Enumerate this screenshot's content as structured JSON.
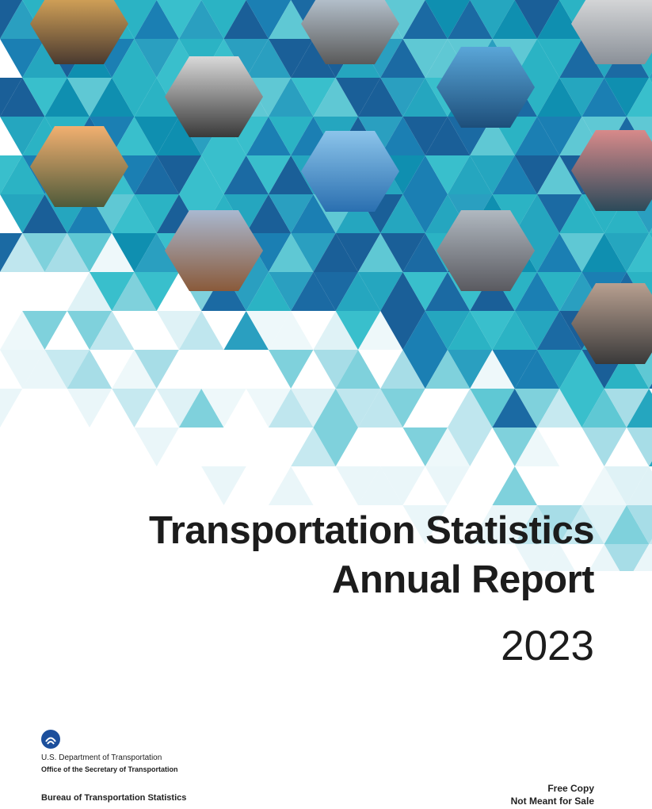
{
  "cover": {
    "title_line1": "Transportation Statistics",
    "title_line2": "Annual Report",
    "year": "2023"
  },
  "footer": {
    "department": "U.S. Department of Transportation",
    "office": "Office of the Secretary of Transportation",
    "bureau": "Bureau of Transportation Statistics",
    "free_copy": "Free Copy",
    "not_for_sale": "Not Meant for Sale"
  },
  "photos": [
    {
      "name": "hikers-photo"
    },
    {
      "name": "bus-photo"
    },
    {
      "name": "pipeline-photo"
    },
    {
      "name": "ev-charging-photo"
    },
    {
      "name": "port-ships-photo"
    },
    {
      "name": "truck-photo"
    },
    {
      "name": "airplane-photo"
    },
    {
      "name": "bridge-photo"
    },
    {
      "name": "freight-train-photo"
    },
    {
      "name": "pedestrians-photo"
    },
    {
      "name": "cyclist-photo"
    }
  ],
  "colors": {
    "teal": "#2bb3c4",
    "dark_blue": "#1b6aa3",
    "light_blue": "#bfe6ee",
    "logo_blue": "#1c4f9c"
  }
}
